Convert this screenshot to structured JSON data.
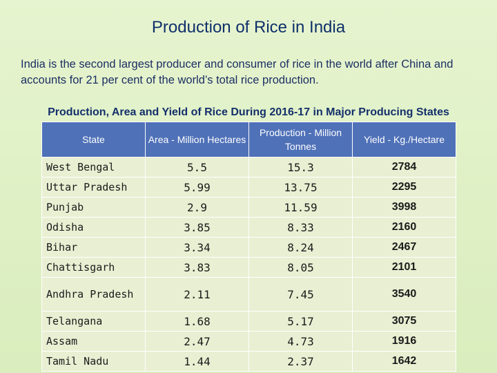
{
  "title": "Production of Rice in India",
  "intro": "India is the second largest producer and consumer of rice in the world after China and accounts for 21 per cent of the world’s total rice production.",
  "table_title": "Production, Area  and Yield of Rice During 2016-17 in Major Producing States",
  "columns": {
    "state": "State",
    "area": "Area - Million Hectares",
    "production": "Production - Million Tonnes",
    "yield": "Yield - Kg./Hectare"
  },
  "rows": [
    {
      "state": "West Bengal",
      "area": "5.5",
      "production": "15.3",
      "yield": "2784"
    },
    {
      "state": "Uttar Pradesh",
      "area": "5.99",
      "production": "13.75",
      "yield": "2295"
    },
    {
      "state": "Punjab",
      "area": "2.9",
      "production": "11.59",
      "yield": "3998"
    },
    {
      "state": "Odisha",
      "area": "3.85",
      "production": "8.33",
      "yield": "2160"
    },
    {
      "state": "Bihar",
      "area": "3.34",
      "production": "8.24",
      "yield": "2467"
    },
    {
      "state": "Chattisgarh",
      "area": "3.83",
      "production": "8.05",
      "yield": "2101"
    },
    {
      "state": "Andhra Pradesh",
      "area": "2.11",
      "production": "7.45",
      "yield": "3540"
    },
    {
      "state": "Telangana",
      "area": "1.68",
      "production": "5.17",
      "yield": "3075"
    },
    {
      "state": "Assam",
      "area": "2.47",
      "production": "4.73",
      "yield": "1916"
    },
    {
      "state": "Tamil Nadu",
      "area": "1.44",
      "production": "2.37",
      "yield": "1642"
    }
  ]
}
